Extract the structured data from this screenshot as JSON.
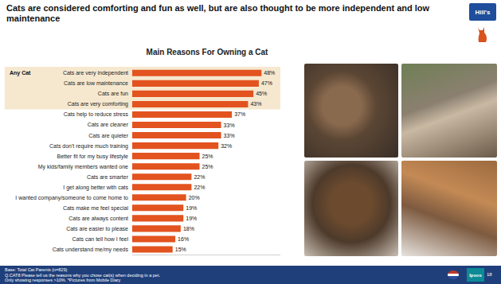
{
  "chart_data": {
    "type": "bar",
    "orientation": "horizontal",
    "title": "Cats are considered comforting and fun as well, but are also thought to be more independent and low maintenance",
    "subtitle": "Main Reasons For Owning a Cat",
    "categories": [
      "Cats are very independent",
      "Cats are low maintenance",
      "Cats are fun",
      "Cats are very comforting",
      "Cats help to reduce stress",
      "Cats are cleaner",
      "Cats are quieter",
      "Cats don't require much training",
      "Better fit for my busy lifestyle",
      "My kids/family members wanted one",
      "Cats are smarter",
      "I get along better with cats",
      "I wanted company/someone to come home to",
      "Cats make me feel special",
      "Cats are always content",
      "Cats are easier to please",
      "Cats can tell how I feel",
      "Cats understand me/my needs"
    ],
    "values": [
      48,
      47,
      45,
      43,
      37,
      33,
      33,
      32,
      25,
      25,
      22,
      22,
      20,
      19,
      19,
      18,
      16,
      15
    ],
    "value_labels": [
      "48%",
      "47%",
      "45%",
      "43%",
      "37%",
      "33%",
      "33%",
      "32%",
      "25%",
      "25%",
      "22%",
      "22%",
      "20%",
      "19%",
      "19%",
      "18%",
      "16%",
      "15%"
    ],
    "color": "#e2531f",
    "xlim": [
      0,
      55
    ],
    "xticks": [],
    "grid": false,
    "data_labels": true,
    "tick_labels": "y",
    "annotations": {
      "group": "Any Cat",
      "footer": [
        "Base: Total Cat Parents (n=829)",
        "Q.CAT8 Please tell us the reasons why you chose cat(s) when deciding in a pet.",
        "Only showing responses >10%. *Pictures from Mobile Diary"
      ],
      "brand": "Hill's",
      "source": "Ipsos",
      "page": "18"
    }
  }
}
